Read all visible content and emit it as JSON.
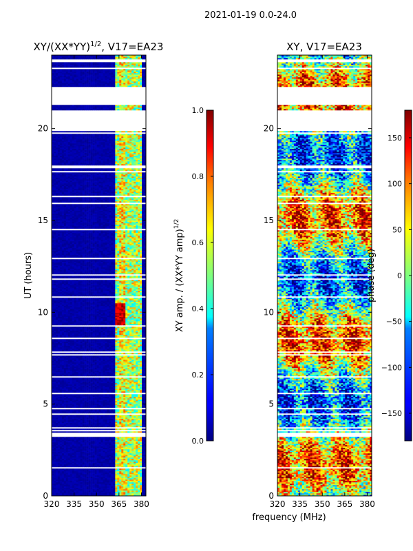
{
  "figure": {
    "suptitle": "2021-01-19 0.0-24.0",
    "xlabel": "frequency (MHz)"
  },
  "chart_data": [
    {
      "type": "heatmap",
      "title_main": "XY/(XX*YY)",
      "title_sup": "1/2",
      "title_rest": ", V17=EA23",
      "ylabel": "UT (hours)",
      "xlim": [
        320,
        383
      ],
      "ylim": [
        0,
        24
      ],
      "xticks": [
        "320",
        "335",
        "350",
        "365",
        "380"
      ],
      "xtick_values": [
        320,
        335,
        350,
        365,
        380
      ],
      "yticks": [
        "0",
        "5",
        "10",
        "15",
        "20"
      ],
      "ytick_values": [
        0,
        5,
        10,
        15,
        20
      ],
      "colorbar": {
        "label_main": "XY amp. / (XX*YY amp)",
        "label_sup": "1/2",
        "range": [
          0.0,
          1.0
        ],
        "ticks": [
          "0.0",
          "0.2",
          "0.4",
          "0.6",
          "0.8",
          "1.0"
        ],
        "tick_values": [
          0.0,
          0.2,
          0.4,
          0.6,
          0.8,
          1.0
        ],
        "colormap": "jet"
      }
    },
    {
      "type": "heatmap",
      "title": "XY, V17=EA23",
      "xlim": [
        320,
        383
      ],
      "ylim": [
        0,
        24
      ],
      "xticks": [
        "320",
        "335",
        "350",
        "365",
        "380"
      ],
      "xtick_values": [
        320,
        335,
        350,
        365,
        380
      ],
      "yticks": [
        "0",
        "5",
        "10",
        "15",
        "20"
      ],
      "ytick_values": [
        0,
        5,
        10,
        15,
        20
      ],
      "colorbar": {
        "label": "phase (deg)",
        "range": [
          -180,
          180
        ],
        "ticks": [
          "−150",
          "−100",
          "−50",
          "0",
          "50",
          "100",
          "150"
        ],
        "tick_values": [
          -150,
          -100,
          -50,
          0,
          50,
          100,
          150
        ],
        "colormap": "jet"
      }
    }
  ],
  "data_gaps_hours": [
    [
      21.3,
      22.3
    ],
    [
      19.9,
      21.0
    ],
    [
      3.3,
      3.5
    ],
    [
      17.9,
      18.0
    ]
  ],
  "colors": {
    "background": "#ffffff",
    "low": "#00008f",
    "high": "#800000"
  }
}
